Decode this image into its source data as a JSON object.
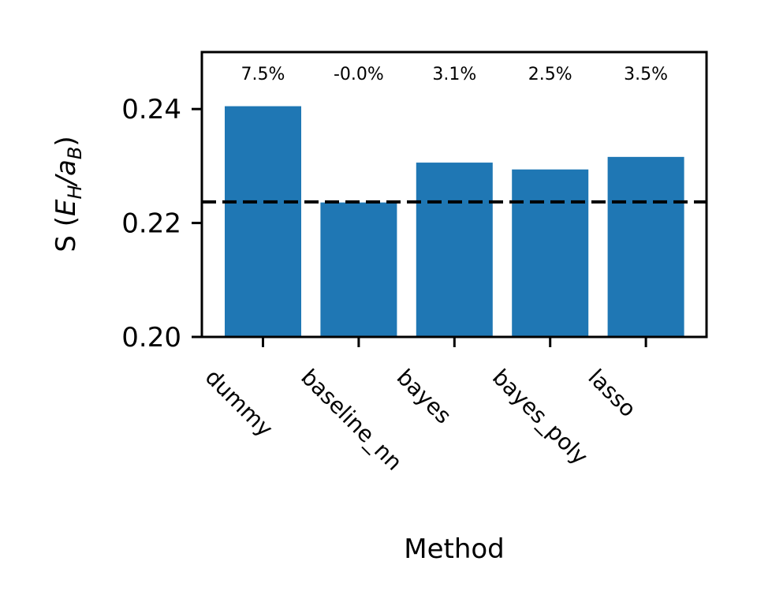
{
  "chart_data": {
    "type": "bar",
    "categories": [
      "dummy",
      "baseline_nn",
      "bayes",
      "bayes_poly",
      "lasso"
    ],
    "values": [
      0.2405,
      0.2236,
      0.2306,
      0.2294,
      0.2316
    ],
    "bar_labels": [
      "7.5%",
      "-0.0%",
      "3.1%",
      "2.5%",
      "3.5%"
    ],
    "reference_line": 0.2237,
    "xlabel": "Method",
    "ylabel": "S (E_H/a_B)",
    "ylim": [
      0.2,
      0.25
    ],
    "yticks": [
      "0.20",
      "0.22",
      "0.24"
    ],
    "grid": false,
    "legend": "none",
    "colors": {
      "bar": "#1f77b4",
      "reference_line": "#000000"
    }
  }
}
